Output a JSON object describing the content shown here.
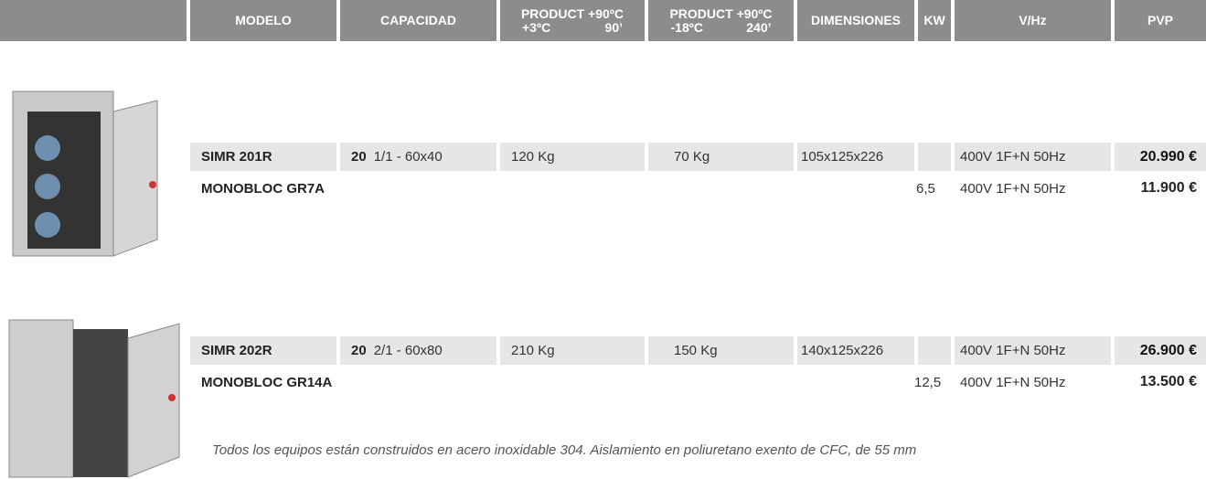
{
  "header": {
    "columns": [
      {
        "line1": "MODELO"
      },
      {
        "line1": "CAPACIDAD"
      },
      {
        "line1": "PRODUCT +90ºC",
        "line2a": "+3ºC",
        "line2b": "90’"
      },
      {
        "line1": "PRODUCT +90ºC",
        "line2a": "-18ºC",
        "line2b": "240’"
      },
      {
        "line1": "DIMENSIONES"
      },
      {
        "line1": "KW"
      },
      {
        "line1": "V/Hz"
      },
      {
        "line1": "PVP"
      }
    ]
  },
  "products": [
    {
      "model": "SIMR 201R",
      "capacity_count": "20",
      "capacity_size": "1/1 - 60x40",
      "product_3": "120 Kg",
      "product_18": "70 Kg",
      "dimensions": "105x125x226",
      "voltage": "400V 1F+N 50Hz",
      "price": "20.990 €",
      "monobloc": {
        "model": "MONOBLOC GR7A",
        "kw": "6,5",
        "voltage": "400V 1F+N 50Hz",
        "price": "11.900 €"
      }
    },
    {
      "model": "SIMR 202R",
      "capacity_count": "20",
      "capacity_size": "2/1 - 60x80",
      "product_3": "210 Kg",
      "product_18": "150 Kg",
      "dimensions": "140x125x226",
      "voltage": "400V 1F+N 50Hz",
      "price": "26.900 €",
      "monobloc": {
        "model": "MONOBLOC GR14A",
        "kw": "12,5",
        "voltage": "400V 1F+N 50Hz",
        "price": "13.500 €"
      }
    }
  ],
  "note": "Todos los equipos están construidos en acero inoxidable 304. Aislamiento en poliuretano exento de CFC, de 55 mm"
}
